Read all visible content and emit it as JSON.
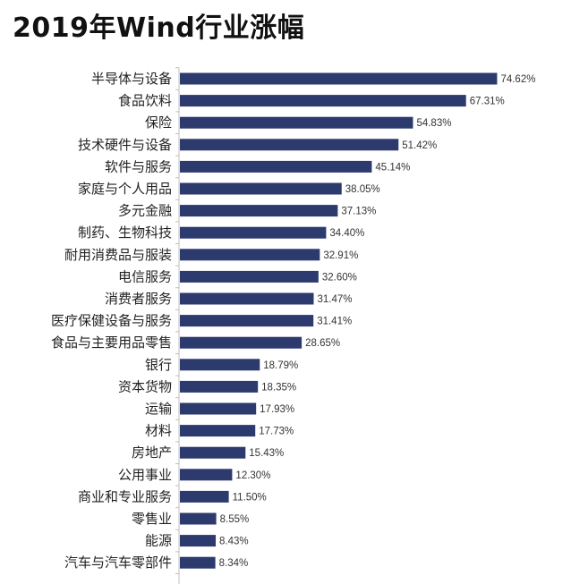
{
  "chart_data": {
    "type": "bar",
    "orientation": "horizontal",
    "title": "2019年Wind行业涨幅",
    "xlabel": "",
    "ylabel": "",
    "value_suffix": "%",
    "xlim": [
      0,
      80
    ],
    "categories": [
      "半导体与设备",
      "食品饮料",
      "保险",
      "技术硬件与设备",
      "软件与服务",
      "家庭与个人用品",
      "多元金融",
      "制药、生物科技",
      "耐用消费品与服装",
      "电信服务",
      "消费者服务",
      "医疗保健设备与服务",
      "食品与主要用品零售",
      "银行",
      "资本货物",
      "运输",
      "材料",
      "房地产",
      "公用事业",
      "商业和专业服务",
      "零售业",
      "能源",
      "汽车与汽车零部件"
    ],
    "values": [
      74.62,
      67.31,
      54.83,
      51.42,
      45.14,
      38.05,
      37.13,
      34.4,
      32.91,
      32.6,
      31.47,
      31.41,
      28.65,
      18.79,
      18.35,
      17.93,
      17.73,
      15.43,
      12.3,
      11.5,
      8.55,
      8.43,
      8.34
    ],
    "value_labels": [
      "74.62%",
      "67.31%",
      "54.83%",
      "51.42%",
      "45.14%",
      "38.05%",
      "37.13%",
      "34.40%",
      "32.91%",
      "32.60%",
      "31.47%",
      "31.41%",
      "28.65%",
      "18.79%",
      "18.35%",
      "17.93%",
      "17.73%",
      "15.43%",
      "12.30%",
      "11.50%",
      "8.55%",
      "8.43%",
      "8.34%"
    ],
    "colors": {
      "bar": "#2c3a6e"
    }
  }
}
